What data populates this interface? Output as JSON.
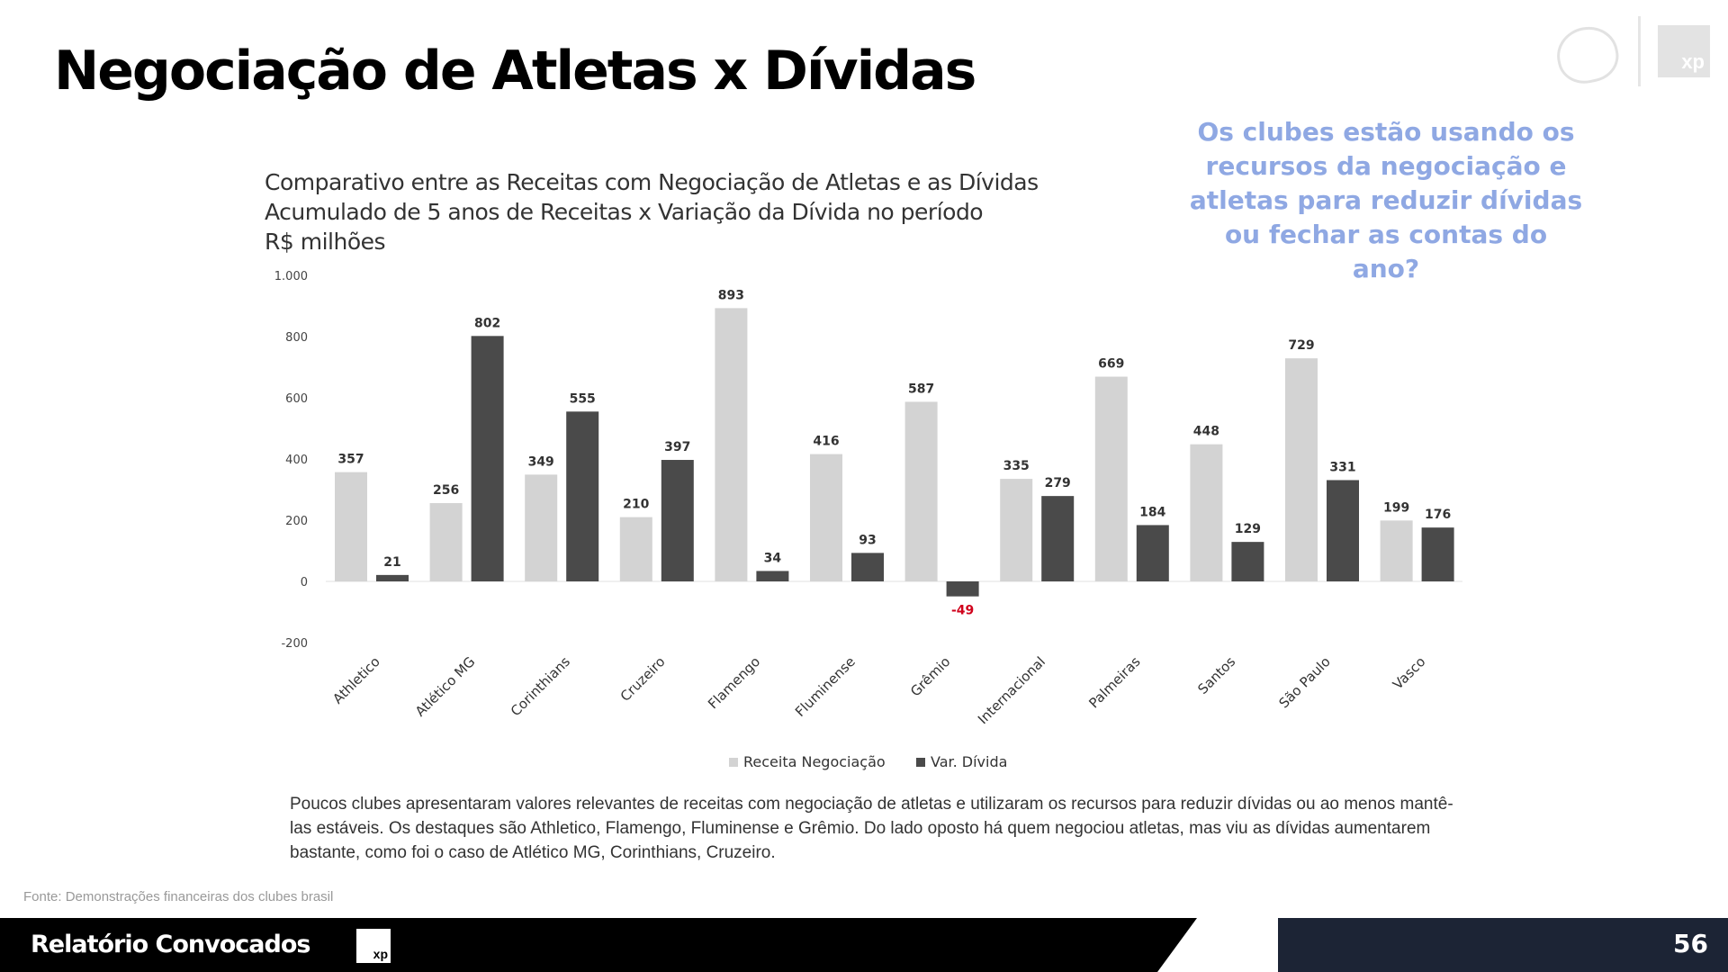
{
  "slide": {
    "title": "Negociação de Atletas x Dívidas",
    "callout": "Os clubes estão usando os recursos da negociação e atletas para reduzir dívidas ou fechar as contas do ano?",
    "description": "Poucos clubes apresentaram valores relevantes de receitas com negociação de atletas e utilizaram os recursos para reduzir dívidas ou ao menos mantê-las estáveis. Os destaques são Athletico, Flamengo, Fluminense e Grêmio. Do lado oposto há quem negociou atletas, mas viu as dívidas aumentarem bastante, como foi o caso de Atlético MG, Corinthians, Cruzeiro.",
    "source": "Fonte: Demonstrações financeiras dos clubes brasil",
    "page_number": "56"
  },
  "footer": {
    "brand": "Relatório Convocados",
    "xp_icon_text": "xp"
  },
  "logos": {
    "xp_text": "xp"
  },
  "colors": {
    "receita": "#d3d3d3",
    "divida": "#4a4a4a",
    "negative_label": "#d0021b",
    "callout": "#8fa8e3"
  },
  "chart_data": {
    "type": "bar",
    "title_lines": [
      "Comparativo entre as Receitas com Negociação de Atletas e as Dívidas",
      "Acumulado de 5 anos de Receitas x Variação da Dívida no período",
      "R$ milhões"
    ],
    "categories": [
      "Athletico",
      "Atlético MG",
      "Corinthians",
      "Cruzeiro",
      "Flamengo",
      "Fluminense",
      "Grêmio",
      "Internacional",
      "Palmeiras",
      "Santos",
      "São Paulo",
      "Vasco"
    ],
    "series": [
      {
        "name": "Receita Negociação",
        "values": [
          357,
          256,
          349,
          210,
          893,
          416,
          587,
          335,
          669,
          448,
          729,
          199
        ]
      },
      {
        "name": "Var. Dívida",
        "values": [
          21,
          802,
          555,
          397,
          34,
          93,
          -49,
          279,
          184,
          129,
          331,
          176
        ]
      }
    ],
    "bar_labels": [
      [
        "357",
        "21"
      ],
      [
        "256",
        "802"
      ],
      [
        "349",
        "555"
      ],
      [
        "210",
        "397"
      ],
      [
        "893",
        "34"
      ],
      [
        "416",
        "93"
      ],
      [
        "587",
        "-49"
      ],
      [
        "335",
        "279"
      ],
      [
        "669",
        "184"
      ],
      [
        "448",
        "129"
      ],
      [
        "729",
        "331"
      ],
      [
        "199",
        "176"
      ]
    ],
    "y_ticks": [
      1000,
      800,
      600,
      400,
      200,
      0,
      -200
    ],
    "y_tick_labels": [
      "1.000",
      "800",
      "600",
      "400",
      "200",
      "0",
      "-200"
    ],
    "ylim": [
      -200,
      1000
    ],
    "legend_position": "bottom",
    "grid": false
  }
}
